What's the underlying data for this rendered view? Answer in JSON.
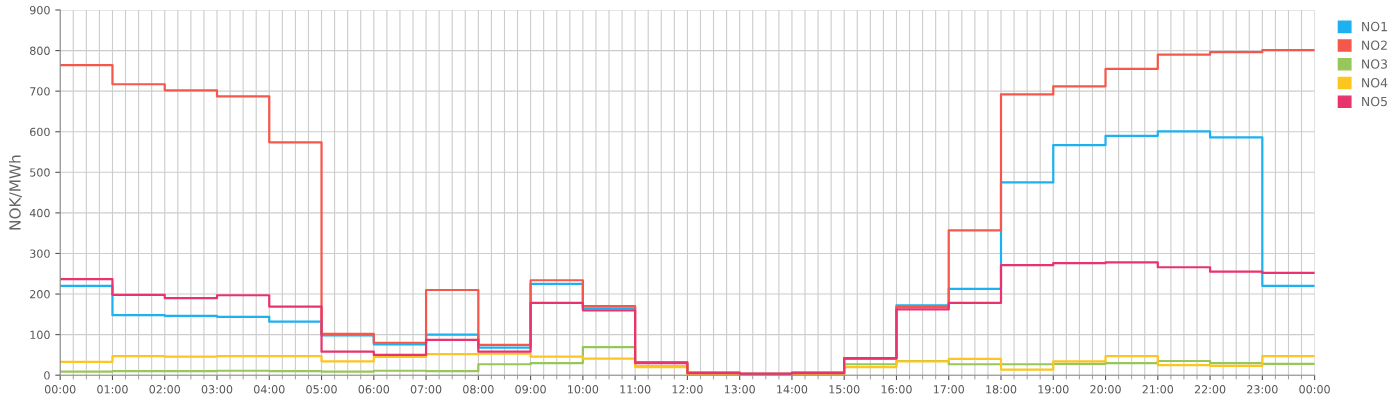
{
  "chart_data": {
    "type": "step",
    "ylabel": "NOK/MWh",
    "x": [
      0,
      1,
      2,
      3,
      4,
      5,
      6,
      7,
      8,
      9,
      10,
      11,
      12,
      13,
      14,
      15,
      16,
      17,
      18,
      19,
      20,
      21,
      22,
      23,
      24
    ],
    "xlim": [
      0,
      24
    ],
    "xticks": [
      {
        "value": 0,
        "label": "00:00"
      },
      {
        "value": 1,
        "label": "01:00"
      },
      {
        "value": 2,
        "label": "02:00"
      },
      {
        "value": 3,
        "label": "03:00"
      },
      {
        "value": 4,
        "label": "04:00"
      },
      {
        "value": 5,
        "label": "05:00"
      },
      {
        "value": 6,
        "label": "06:00"
      },
      {
        "value": 7,
        "label": "07:00"
      },
      {
        "value": 8,
        "label": "08:00"
      },
      {
        "value": 9,
        "label": "09:00"
      },
      {
        "value": 10,
        "label": "10:00"
      },
      {
        "value": 11,
        "label": "11:00"
      },
      {
        "value": 12,
        "label": "12:00"
      },
      {
        "value": 13,
        "label": "13:00"
      },
      {
        "value": 14,
        "label": "14:00"
      },
      {
        "value": 15,
        "label": "15:00"
      },
      {
        "value": 16,
        "label": "16:00"
      },
      {
        "value": 17,
        "label": "17:00"
      },
      {
        "value": 18,
        "label": "18:00"
      },
      {
        "value": 19,
        "label": "19:00"
      },
      {
        "value": 20,
        "label": "20:00"
      },
      {
        "value": 21,
        "label": "21:00"
      },
      {
        "value": 22,
        "label": "22:00"
      },
      {
        "value": 23,
        "label": "23:00"
      },
      {
        "value": 24,
        "label": "00:00"
      }
    ],
    "ylim": [
      0,
      900
    ],
    "yticks": [
      0,
      100,
      200,
      300,
      400,
      500,
      600,
      700,
      800,
      900
    ],
    "grid": true,
    "legend": "top right",
    "series": [
      {
        "name": "NO1",
        "color": "#1eb1f0",
        "values": [
          220,
          148,
          146,
          144,
          132,
          98,
          76,
          100,
          68,
          225,
          165,
          null,
          5,
          3,
          null,
          40,
          172,
          213,
          475,
          567,
          590,
          601,
          586,
          220,
          220
        ]
      },
      {
        "name": "NO2",
        "color": "#f5584a",
        "values": [
          764,
          717,
          702,
          687,
          574,
          102,
          80,
          210,
          75,
          234,
          170,
          32,
          7,
          4,
          7,
          42,
          168,
          357,
          692,
          712,
          755,
          790,
          796,
          801,
          801
        ]
      },
      {
        "name": "NO3",
        "color": "#97c65a",
        "values": [
          9,
          10,
          10,
          11,
          10,
          9,
          11,
          10,
          27,
          30,
          69,
          22,
          3,
          2,
          3,
          27,
          35,
          27,
          27,
          28,
          30,
          35,
          30,
          28,
          28
        ]
      },
      {
        "name": "NO4",
        "color": "#fdc520",
        "values": [
          33,
          47,
          46,
          47,
          47,
          34,
          45,
          52,
          53,
          46,
          41,
          20,
          2,
          1,
          2,
          20,
          34,
          40,
          14,
          34,
          47,
          25,
          23,
          47,
          47
        ]
      },
      {
        "name": "NO5",
        "color": "#e8336d",
        "values": [
          237,
          198,
          190,
          197,
          169,
          58,
          50,
          87,
          58,
          178,
          160,
          30,
          5,
          3,
          5,
          42,
          162,
          178,
          271,
          276,
          278,
          266,
          255,
          252,
          252
        ]
      }
    ]
  }
}
